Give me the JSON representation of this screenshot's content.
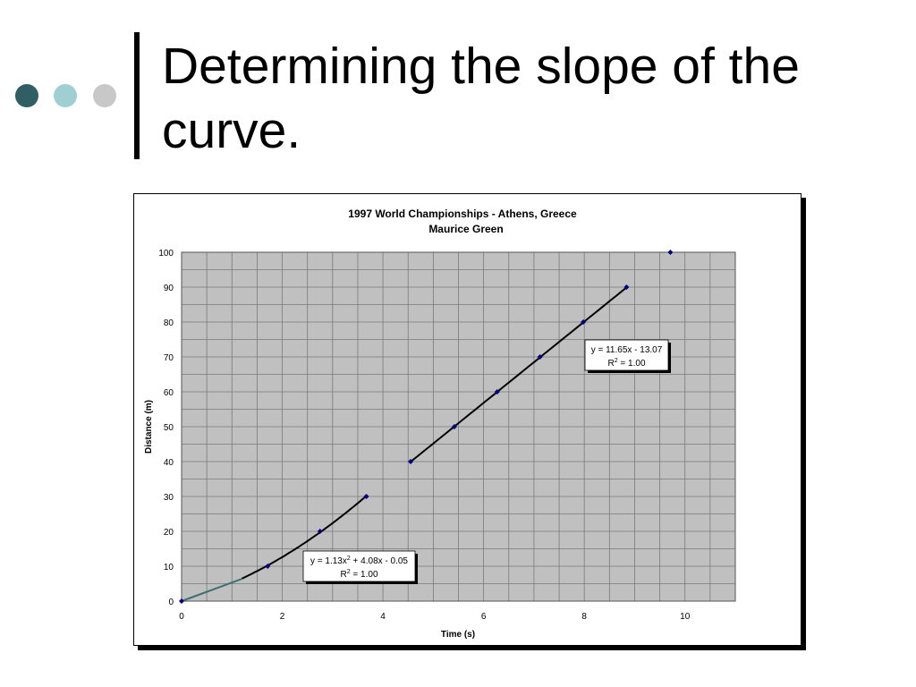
{
  "slide": {
    "title": "Determining the slope of the curve.",
    "bullet_colors": [
      "#2f5f63",
      "#9fcfd2",
      "#c8c8c8"
    ]
  },
  "chart_data": {
    "type": "scatter",
    "title": "1997 World Championships - Athens, Greece",
    "subtitle": "Maurice Green",
    "xlabel": "Time (s)",
    "ylabel": "Distance (m)",
    "xlim": [
      0,
      11
    ],
    "ylim": [
      0,
      100
    ],
    "x_ticks": [
      0,
      2,
      4,
      6,
      8,
      10
    ],
    "y_ticks": [
      0,
      10,
      20,
      30,
      40,
      50,
      60,
      70,
      80,
      90,
      100
    ],
    "grid": true,
    "plot_background": "#c0c0c0",
    "marker_color": "#000080",
    "points": [
      {
        "x": 0,
        "y": 0
      },
      {
        "x": 1.71,
        "y": 10
      },
      {
        "x": 2.75,
        "y": 20
      },
      {
        "x": 3.67,
        "y": 30
      },
      {
        "x": 4.55,
        "y": 40
      },
      {
        "x": 5.42,
        "y": 50
      },
      {
        "x": 6.27,
        "y": 60
      },
      {
        "x": 7.12,
        "y": 70
      },
      {
        "x": 7.98,
        "y": 80
      },
      {
        "x": 8.84,
        "y": 90
      },
      {
        "x": 9.71,
        "y": 100
      }
    ],
    "trendlines": [
      {
        "kind": "polynomial",
        "coefficients": [
          1.13,
          4.08,
          -0.05
        ],
        "x_range": [
          1.2,
          3.67
        ],
        "equation": "y = 1.13x",
        "equation_sup": "2",
        "equation_rest": " + 4.08x - 0.05",
        "r2_label": "R",
        "r2_sup": "2",
        "r2_rest": " = 1.00",
        "color": "#000000"
      },
      {
        "kind": "linear",
        "coefficients": [
          11.65,
          -13.07
        ],
        "x_range": [
          4.55,
          8.84
        ],
        "equation": "y = 11.65x - 13.07",
        "r2_label": "R",
        "r2_sup": "2",
        "r2_rest": " = 1.00",
        "color": "#000000"
      }
    ],
    "segments": [
      {
        "x": [
          0,
          1.2
        ],
        "y": [
          0,
          6.4
        ],
        "color": "#3f6f72"
      }
    ]
  }
}
